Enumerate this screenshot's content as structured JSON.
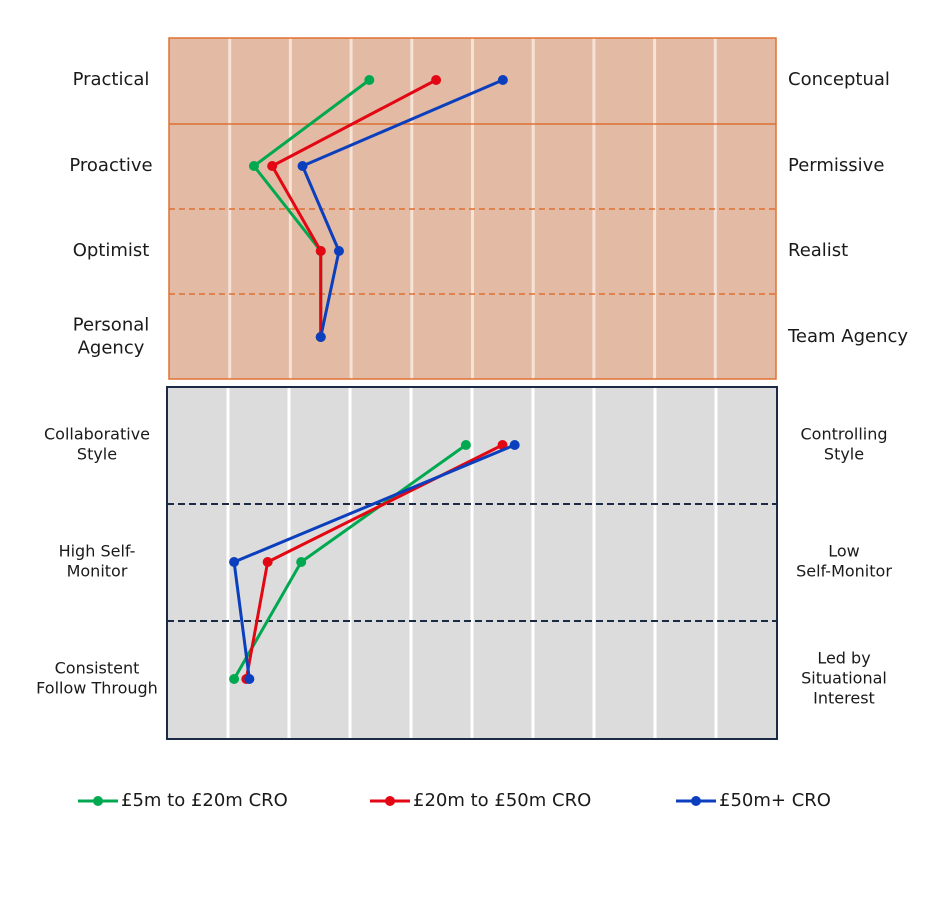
{
  "chart_data": {
    "type": "line",
    "orientation": "profile",
    "x_range": [
      0,
      10
    ],
    "grid": true,
    "legend_position": "bottom",
    "series": [
      {
        "name": "£5m to £20m CRO",
        "color": "#00a850"
      },
      {
        "name": "£20m to £50m CRO",
        "color": "#e30613"
      },
      {
        "name": "£50m+ CRO",
        "color": "#0b3fbd"
      }
    ],
    "panels": [
      {
        "name": "top",
        "background": "#e3bba5",
        "border_color": "#e07030",
        "divider_color": "#e07030",
        "dimensions": [
          {
            "left": "Practical",
            "right": "Conceptual"
          },
          {
            "left": "Proactive",
            "right": "Permissive"
          },
          {
            "left": "Optimist",
            "right": "Realist"
          },
          {
            "left": [
              "Personal",
              "Agency"
            ],
            "right": "Team Agency"
          }
        ],
        "values": [
          [
            3.3,
            1.4,
            2.5,
            2.5
          ],
          [
            4.4,
            1.7,
            2.5,
            2.5
          ],
          [
            5.5,
            2.2,
            2.8,
            2.5
          ]
        ]
      },
      {
        "name": "bottom",
        "background": "#dcdcdc",
        "border_color": "#1b2a45",
        "divider_color": "#1b2a45",
        "dimensions": [
          {
            "left": [
              "Collaborative",
              "Style"
            ],
            "right": [
              "Controlling",
              "Style"
            ]
          },
          {
            "left": [
              "High Self-",
              "Monitor"
            ],
            "right": [
              "Low",
              "Self-Monitor"
            ]
          },
          {
            "left": [
              "Consistent",
              "Follow Through"
            ],
            "right": [
              "Led by",
              "Situational",
              "Interest"
            ]
          }
        ],
        "values": [
          [
            4.9,
            2.2,
            1.1
          ],
          [
            5.5,
            1.65,
            1.3
          ],
          [
            5.7,
            1.1,
            1.35
          ]
        ]
      }
    ]
  }
}
